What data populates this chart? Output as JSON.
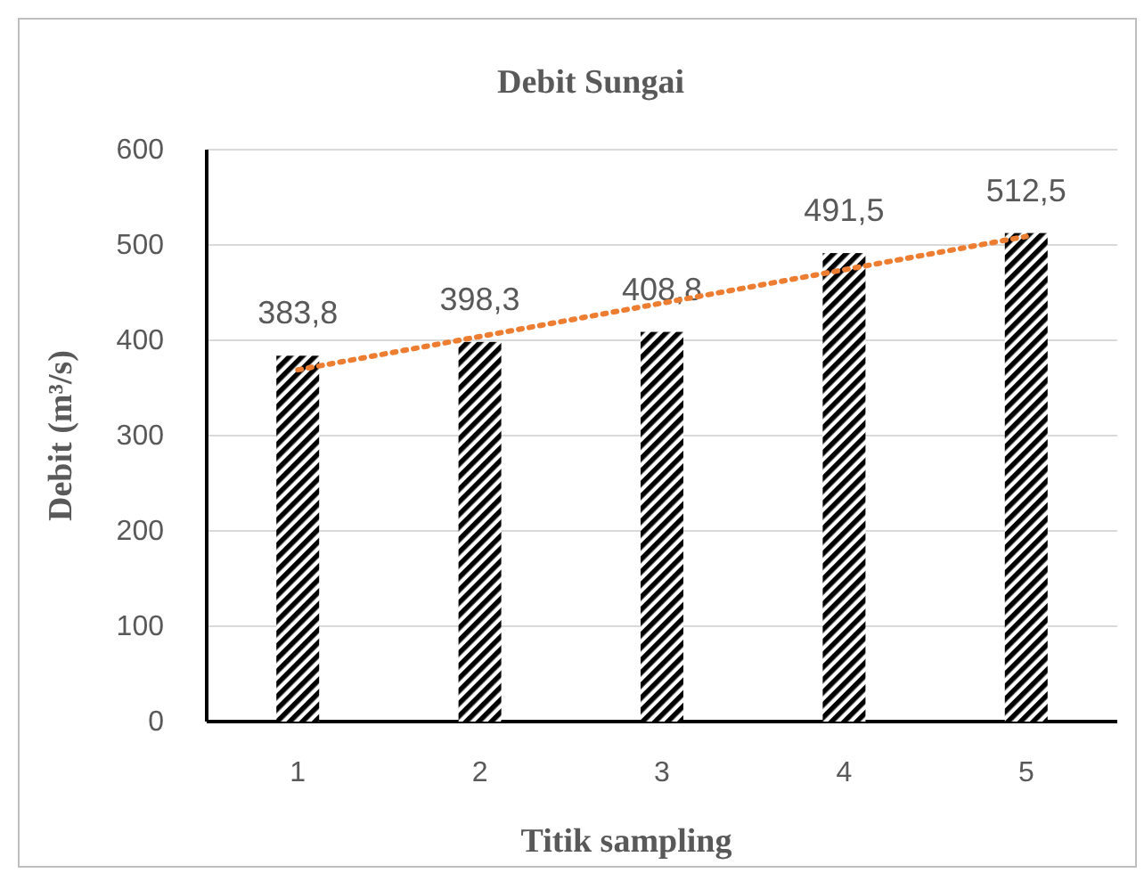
{
  "chart_data": {
    "type": "bar",
    "title": "Debit Sungai",
    "xlabel": "Titik sampling",
    "ylabel": "Debit (m³/s)",
    "categories": [
      "1",
      "2",
      "3",
      "4",
      "5"
    ],
    "series": [
      {
        "color": "#000000",
        "values": [
          383.8,
          398.3,
          408.8,
          491.5,
          512.5
        ],
        "value_labels": [
          "383,8",
          "398,3",
          "408,8",
          "491,5",
          "512,5"
        ]
      },
      {
        "type": "line",
        "color": "#ed7d31",
        "line_style": "dotted",
        "x": [
          "1",
          "5"
        ],
        "values": [
          369,
          509
        ]
      }
    ],
    "ylim": [
      0,
      600
    ],
    "yticks": [
      0,
      100,
      200,
      300,
      400,
      500,
      600
    ],
    "grid": "y"
  }
}
